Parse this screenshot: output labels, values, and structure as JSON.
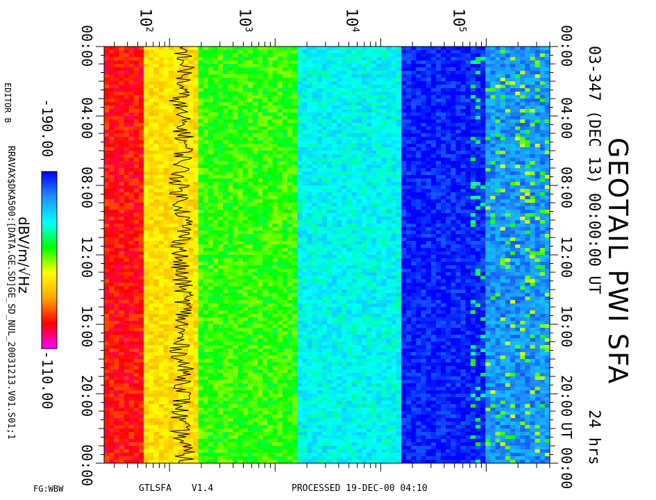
{
  "chart_data": {
    "type": "heatmap",
    "title": "GEOTAIL PWI SFA",
    "subtitle": "03-347 (DEC 13) 00:00:00 UT",
    "duration_label": "24 hrs",
    "x_axis": {
      "scale": "log",
      "label": "",
      "ticks": [
        {
          "exp": "2",
          "value": 100
        },
        {
          "exp": "3",
          "value": 1000
        },
        {
          "exp": "4",
          "value": 10000
        },
        {
          "exp": "5",
          "value": 100000
        }
      ],
      "range": [
        24,
        400000
      ]
    },
    "y_axis": {
      "label": "UT",
      "range": [
        "00:00",
        "24:00"
      ],
      "tick_labels": [
        "00:00",
        "04:00",
        "08:00",
        "12:00",
        "16:00",
        "20:00",
        "UT 00:00"
      ],
      "left_tick_labels": [
        "00:00",
        "04:00",
        "08:00",
        "12:00",
        "16:00",
        "20:00",
        "00:00"
      ]
    },
    "colorbar": {
      "label": "dBV/m/√Hz",
      "min_label": "-190.00",
      "max_label": "-110.00",
      "min": -190,
      "max": -110,
      "colors": [
        "#ff00ff",
        "#ff0000",
        "#ffa500",
        "#ffff00",
        "#00ff00",
        "#00ffff",
        "#1e90ff",
        "#0000ff"
      ]
    },
    "bands": [
      {
        "from": 24,
        "to": 55,
        "level": 0.15,
        "note": "magenta-red"
      },
      {
        "from": 55,
        "to": 190,
        "level": 0.38,
        "note": "orange-yellow"
      },
      {
        "from": 190,
        "to": 1700,
        "level": 0.55,
        "note": "yellow-green"
      },
      {
        "from": 1700,
        "to": 15000,
        "level": 0.72,
        "note": "cyan"
      },
      {
        "from": 15000,
        "to": 100000,
        "level": 0.97,
        "note": "blue"
      },
      {
        "from": 100000,
        "to": 400000,
        "level": 0.85,
        "note": "blue-cyan"
      }
    ],
    "overlay_line_color": "#000000",
    "grid": false
  },
  "labels": {
    "editor": "EDITOR B",
    "file_path": "RRAVAX$DKA500:[DATA.GE.SD]GE_SD_NUL_20031213.V01.S01;1",
    "footer_left": "FG:WBW",
    "footer_program": "GTLSFA",
    "footer_version": "V1.4",
    "footer_processed": "PROCESSED 19-DEC-00  04:10"
  }
}
